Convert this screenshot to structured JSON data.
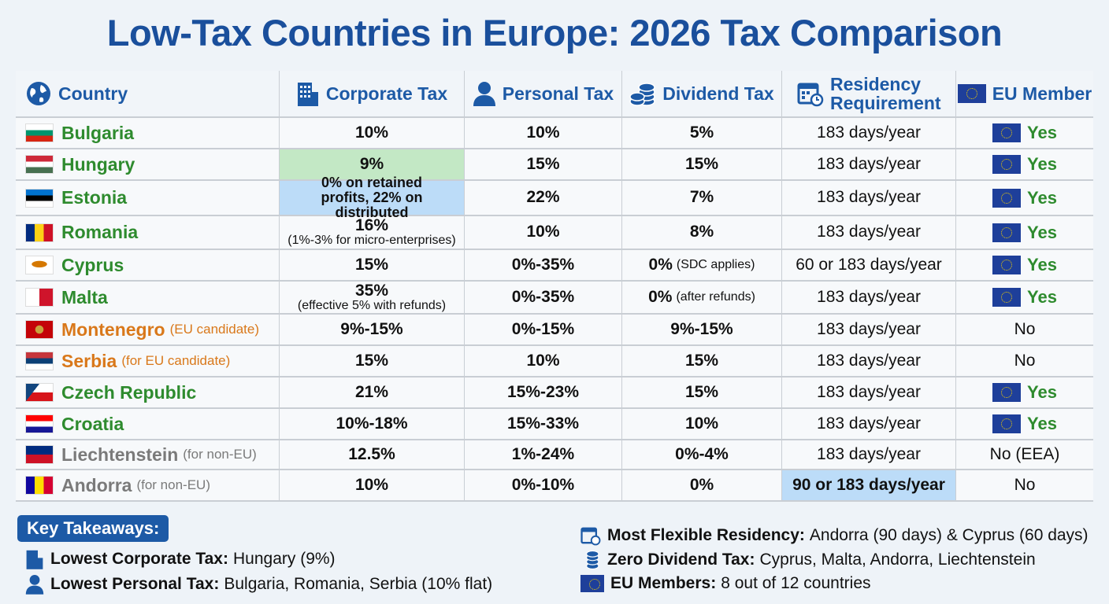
{
  "title": "Low-Tax Countries in Europe: 2026 Tax Comparison",
  "headers": {
    "country": "Country",
    "corporate": "Corporate Tax",
    "personal": "Personal Tax",
    "dividend": "Dividend Tax",
    "residency": "Residency Requirement",
    "eu": "EU Member"
  },
  "colors": {
    "title": "#1a4f9c",
    "eu_country": "#2e8b2e",
    "candidate": "#d9781a",
    "non_eu": "#7a7a7a",
    "highlight_green": "#c3e8c5",
    "highlight_blue": "#bcdcf8"
  },
  "rows": [
    {
      "country": "Bulgaria",
      "note": "",
      "corporate": "10%",
      "corporate_sub": "",
      "personal": "10%",
      "dividend": "5%",
      "dividend_note": "",
      "residency": "183 days/year",
      "eu": "Yes"
    },
    {
      "country": "Hungary",
      "note": "",
      "corporate": "9%",
      "corporate_sub": "",
      "personal": "15%",
      "dividend": "15%",
      "dividend_note": "",
      "residency": "183 days/year",
      "eu": "Yes"
    },
    {
      "country": "Estonia",
      "note": "",
      "corporate": "0% on retained profits, 22% on distributed",
      "corporate_sub": "",
      "personal": "22%",
      "dividend": "7%",
      "dividend_note": "",
      "residency": "183 days/year",
      "eu": "Yes"
    },
    {
      "country": "Romania",
      "note": "",
      "corporate": "16%",
      "corporate_sub": "(1%-3% for micro-enterprises)",
      "personal": "10%",
      "dividend": "8%",
      "dividend_note": "",
      "residency": "183 days/year",
      "eu": "Yes"
    },
    {
      "country": "Cyprus",
      "note": "",
      "corporate": "15%",
      "corporate_sub": "",
      "personal": "0%-35%",
      "dividend": "0%",
      "dividend_note": "(SDC applies)",
      "residency": "60 or 183 days/year",
      "eu": "Yes"
    },
    {
      "country": "Malta",
      "note": "",
      "corporate": "35%",
      "corporate_sub": "(effective 5% with refunds)",
      "personal": "0%-35%",
      "dividend": "0%",
      "dividend_note": "(after refunds)",
      "residency": "183 days/year",
      "eu": "Yes"
    },
    {
      "country": "Montenegro",
      "note": "(EU candidate)",
      "corporate": "9%-15%",
      "corporate_sub": "",
      "personal": "0%-15%",
      "dividend": "9%-15%",
      "dividend_note": "",
      "residency": "183 days/year",
      "eu": "No"
    },
    {
      "country": "Serbia",
      "note": "(for EU candidate)",
      "corporate": "15%",
      "corporate_sub": "",
      "personal": "10%",
      "dividend": "15%",
      "dividend_note": "",
      "residency": "183 days/year",
      "eu": "No"
    },
    {
      "country": "Czech Republic",
      "note": "",
      "corporate": "21%",
      "corporate_sub": "",
      "personal": "15%-23%",
      "dividend": "15%",
      "dividend_note": "",
      "residency": "183 days/year",
      "eu": "Yes"
    },
    {
      "country": "Croatia",
      "note": "",
      "corporate": "10%-18%",
      "corporate_sub": "",
      "personal": "15%-33%",
      "dividend": "10%",
      "dividend_note": "",
      "residency": "183 days/year",
      "eu": "Yes"
    },
    {
      "country": "Liechtenstein",
      "note": "(for non-EU)",
      "corporate": "12.5%",
      "corporate_sub": "",
      "personal": "1%-24%",
      "dividend": "0%-4%",
      "dividend_note": "",
      "residency": "183 days/year",
      "eu": "No (EEA)"
    },
    {
      "country": "Andorra",
      "note": "(for non-EU)",
      "corporate": "10%",
      "corporate_sub": "",
      "personal": "0%-10%",
      "dividend": "0%",
      "dividend_note": "",
      "residency": "90 or 183 days/year",
      "eu": "No"
    }
  ],
  "takeaways": {
    "heading": "Key Takeaways:",
    "items": [
      {
        "label": "Lowest Corporate Tax:",
        "text": "Hungary (9%)",
        "icon": "building-icon"
      },
      {
        "label": "Lowest Personal Tax:",
        "text": "Bulgaria, Romania, Serbia (10% flat)",
        "icon": "person-icon"
      },
      {
        "label": "Most Flexible Residency:",
        "text": "Andorra (90 days) & Cyprus (60 days)",
        "icon": "calendar-clock-icon"
      },
      {
        "label": "Zero Dividend Tax:",
        "text": "Cyprus, Malta, Andorra, Liechtenstein",
        "icon": "coins-icon"
      },
      {
        "label": "EU Members:",
        "text": "8 out of 12 countries",
        "icon": "eu-flag-icon"
      }
    ]
  }
}
